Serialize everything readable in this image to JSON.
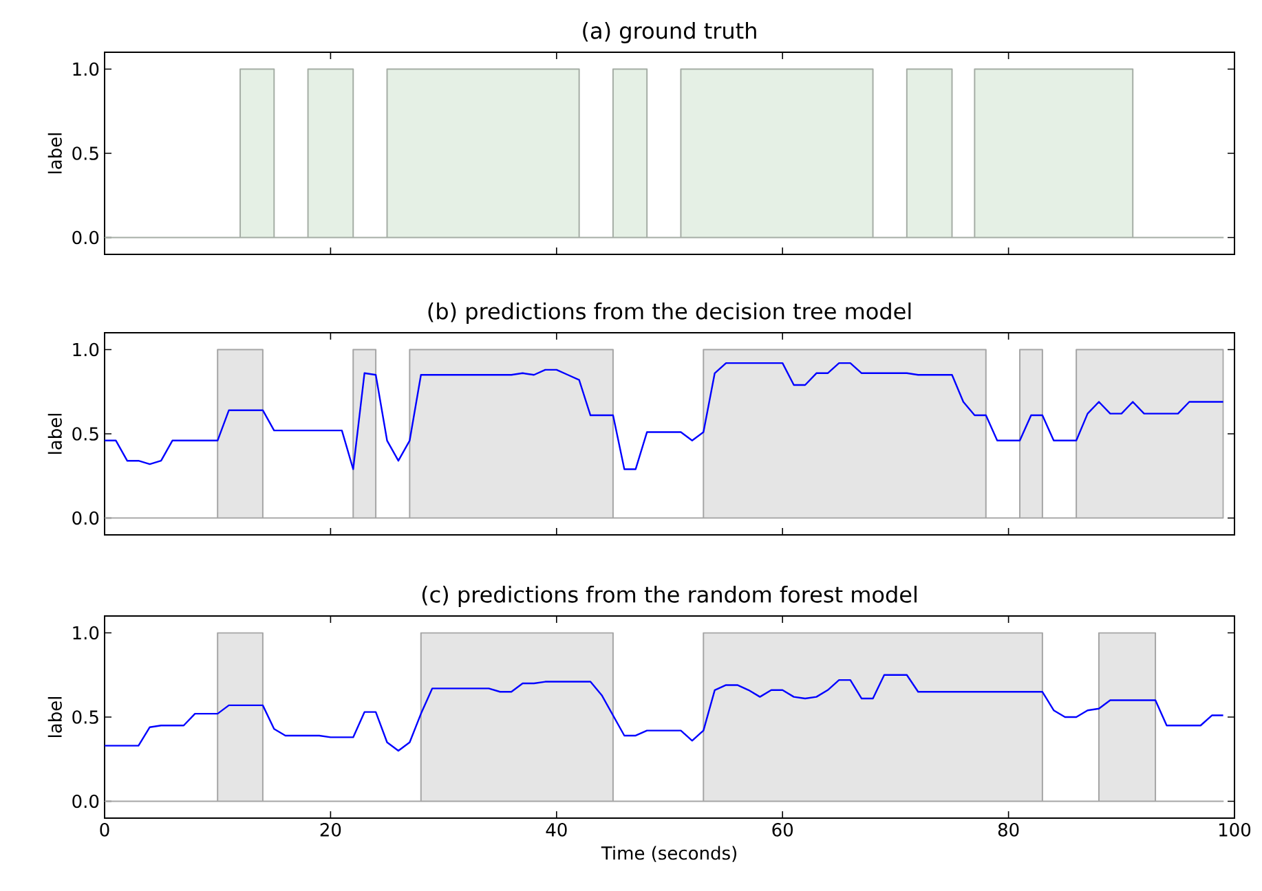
{
  "chart_data": [
    {
      "type": "line",
      "title": "(a) ground truth",
      "ylabel": "label",
      "xlim": [
        0,
        100
      ],
      "ylim": [
        -0.1,
        1.1
      ],
      "xticks": [
        0,
        20,
        40,
        60,
        80,
        100
      ],
      "yticks": [
        {
          "value": 0,
          "label": "0.0"
        },
        {
          "value": 0.5,
          "label": "0.5"
        },
        {
          "value": 1,
          "label": "1.0"
        }
      ],
      "tick_labels": "y",
      "grid": false,
      "marker": "none",
      "line_style": "solid",
      "series": [
        {
          "type": "area",
          "color": "#e5f0e5",
          "x": [
            0,
            12,
            12,
            15,
            15,
            18,
            18,
            22,
            22,
            25,
            25,
            42,
            42,
            45,
            45,
            48,
            48,
            51,
            51,
            68,
            68,
            71,
            71,
            75,
            75,
            77,
            77,
            91,
            91,
            99
          ],
          "values": [
            0,
            0,
            1,
            1,
            0,
            0,
            1,
            1,
            0,
            0,
            1,
            1,
            0,
            0,
            1,
            1,
            0,
            0,
            1,
            1,
            0,
            0,
            1,
            1,
            0,
            0,
            1,
            1,
            0,
            0
          ]
        }
      ]
    },
    {
      "type": "line",
      "title": "(b) predictions from the decision tree model",
      "ylabel": "label",
      "xlim": [
        0,
        100
      ],
      "ylim": [
        -0.1,
        1.1
      ],
      "xticks": [
        0,
        20,
        40,
        60,
        80,
        100
      ],
      "yticks": [
        {
          "value": 0,
          "label": "0.0"
        },
        {
          "value": 0.5,
          "label": "0.5"
        },
        {
          "value": 1,
          "label": "1.0"
        }
      ],
      "tick_labels": "y",
      "grid": false,
      "marker": "none",
      "line_style": "solid",
      "series": [
        {
          "type": "area",
          "color": "#e5e5e5",
          "x": [
            0,
            10,
            10,
            14,
            14,
            22,
            22,
            24,
            24,
            27,
            27,
            45,
            45,
            53,
            53,
            78,
            78,
            81,
            81,
            83,
            83,
            86,
            86,
            99
          ],
          "values": [
            0,
            0,
            1,
            1,
            0,
            0,
            1,
            1,
            0,
            0,
            1,
            1,
            0,
            0,
            1,
            1,
            0,
            0,
            1,
            1,
            0,
            0,
            1,
            1
          ]
        },
        {
          "color": "#0000ff",
          "x": [
            0,
            1,
            2,
            3,
            4,
            5,
            6,
            10,
            11,
            14,
            15,
            21,
            22,
            23,
            24,
            25,
            26,
            27,
            28,
            36,
            37,
            38,
            39,
            40,
            41,
            42,
            43,
            45,
            46,
            47,
            48,
            51,
            52,
            53,
            54,
            55,
            60,
            61,
            62,
            63,
            64,
            65,
            66,
            67,
            71,
            72,
            75,
            76,
            77,
            78,
            79,
            81,
            82,
            83,
            84,
            86,
            87,
            88,
            89,
            90,
            91,
            92,
            95,
            96,
            99
          ],
          "values": [
            0.46,
            0.46,
            0.34,
            0.34,
            0.32,
            0.34,
            0.46,
            0.46,
            0.64,
            0.64,
            0.52,
            0.52,
            0.29,
            0.86,
            0.85,
            0.46,
            0.34,
            0.46,
            0.85,
            0.85,
            0.86,
            0.85,
            0.88,
            0.88,
            0.85,
            0.82,
            0.61,
            0.61,
            0.29,
            0.29,
            0.51,
            0.51,
            0.46,
            0.51,
            0.86,
            0.92,
            0.92,
            0.79,
            0.79,
            0.86,
            0.86,
            0.92,
            0.92,
            0.86,
            0.86,
            0.85,
            0.85,
            0.69,
            0.61,
            0.61,
            0.46,
            0.46,
            0.61,
            0.61,
            0.46,
            0.46,
            0.62,
            0.69,
            0.62,
            0.62,
            0.69,
            0.62,
            0.62,
            0.69,
            0.69
          ]
        }
      ]
    },
    {
      "type": "line",
      "title": "(c) predictions from the random forest model",
      "ylabel": "label",
      "xlabel": "Time (seconds)",
      "xlim": [
        0,
        100
      ],
      "ylim": [
        -0.1,
        1.1
      ],
      "xticks": [
        0,
        20,
        40,
        60,
        80,
        100
      ],
      "yticks": [
        {
          "value": 0,
          "label": "0.0"
        },
        {
          "value": 0.5,
          "label": "0.5"
        },
        {
          "value": 1,
          "label": "1.0"
        }
      ],
      "grid": false,
      "marker": "none",
      "line_style": "solid",
      "series": [
        {
          "type": "area",
          "color": "#e5e5e5",
          "x": [
            0,
            10,
            10,
            14,
            14,
            28,
            28,
            45,
            45,
            53,
            53,
            83,
            83,
            88,
            88,
            93,
            93,
            99
          ],
          "values": [
            0,
            0,
            1,
            1,
            0,
            0,
            1,
            1,
            0,
            0,
            1,
            1,
            0,
            0,
            1,
            1,
            0,
            0
          ]
        },
        {
          "color": "#0000ff",
          "x": [
            0,
            3,
            4,
            5,
            7,
            8,
            10,
            11,
            14,
            15,
            16,
            19,
            20,
            22,
            23,
            24,
            25,
            26,
            27,
            28,
            29,
            34,
            35,
            36,
            37,
            38,
            39,
            43,
            44,
            46,
            47,
            48,
            51,
            52,
            53,
            54,
            55,
            56,
            57,
            58,
            59,
            60,
            61,
            62,
            63,
            64,
            65,
            66,
            67,
            68,
            69,
            71,
            72,
            77,
            78,
            83,
            84,
            85,
            86,
            87,
            88,
            89,
            93,
            94,
            97,
            98,
            99
          ],
          "values": [
            0.33,
            0.33,
            0.44,
            0.45,
            0.45,
            0.52,
            0.52,
            0.57,
            0.57,
            0.43,
            0.39,
            0.39,
            0.38,
            0.38,
            0.53,
            0.53,
            0.35,
            0.3,
            0.35,
            0.52,
            0.67,
            0.67,
            0.65,
            0.65,
            0.7,
            0.7,
            0.71,
            0.71,
            0.63,
            0.39,
            0.39,
            0.42,
            0.42,
            0.36,
            0.42,
            0.66,
            0.69,
            0.69,
            0.66,
            0.62,
            0.66,
            0.66,
            0.62,
            0.61,
            0.62,
            0.66,
            0.72,
            0.72,
            0.61,
            0.61,
            0.75,
            0.75,
            0.65,
            0.65,
            0.65,
            0.65,
            0.54,
            0.5,
            0.5,
            0.54,
            0.55,
            0.6,
            0.6,
            0.45,
            0.45,
            0.51,
            0.51
          ]
        }
      ]
    }
  ]
}
